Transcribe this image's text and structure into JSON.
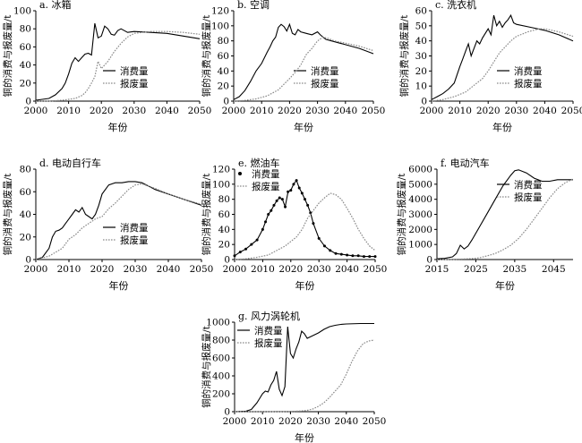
{
  "figure": {
    "ylabel_common": "铜的消费与报废量/t",
    "xlabel_common": "年份",
    "legend_consumption": "消费量",
    "legend_scrap": "报废量"
  },
  "chart_data": [
    {
      "id": "a",
      "type": "line",
      "title": "a. 冰箱",
      "xlabel": "年份",
      "ylabel": "铜的消费与报废量/t",
      "xlim": [
        2000,
        2050
      ],
      "ylim": [
        0,
        100
      ],
      "xticks": [
        2000,
        2010,
        2020,
        2030,
        2040,
        2050
      ],
      "yticks": [
        0,
        20,
        40,
        60,
        80,
        100
      ],
      "legend_position": "right",
      "series": [
        {
          "name": "消费量",
          "style": "solid",
          "x": [
            2000,
            2002,
            2004,
            2006,
            2008,
            2009,
            2010,
            2011,
            2012,
            2013,
            2014,
            2015,
            2016,
            2017,
            2018,
            2019,
            2020,
            2021,
            2022,
            2023,
            2024,
            2025,
            2026,
            2027,
            2028,
            2030,
            2035,
            2040,
            2045,
            2050
          ],
          "y": [
            1,
            2,
            3,
            7,
            14,
            20,
            30,
            42,
            48,
            44,
            48,
            52,
            53,
            51,
            86,
            70,
            72,
            83,
            80,
            74,
            73,
            78,
            80,
            78,
            76,
            77,
            76,
            75,
            72,
            69
          ]
        },
        {
          "name": "报废量",
          "style": "dotted",
          "x": [
            2000,
            2004,
            2008,
            2010,
            2012,
            2014,
            2015,
            2016,
            2017,
            2018,
            2019,
            2020,
            2022,
            2024,
            2026,
            2028,
            2030,
            2035,
            2040,
            2045,
            2050
          ],
          "y": [
            0,
            0,
            1,
            2,
            3,
            6,
            9,
            14,
            20,
            27,
            44,
            36,
            44,
            55,
            64,
            71,
            75,
            77,
            77,
            76,
            74
          ]
        }
      ]
    },
    {
      "id": "b",
      "type": "line",
      "title": "b. 空调",
      "xlabel": "年份",
      "ylabel": "铜的消费与报废量/t",
      "xlim": [
        2000,
        2050
      ],
      "ylim": [
        0,
        120
      ],
      "xticks": [
        2000,
        2010,
        2020,
        2030,
        2040,
        2050
      ],
      "yticks": [
        0,
        20,
        40,
        60,
        80,
        100,
        120
      ],
      "legend_position": "right",
      "series": [
        {
          "name": "消费量",
          "style": "solid",
          "x": [
            2000,
            2002,
            2004,
            2006,
            2008,
            2010,
            2012,
            2013,
            2014,
            2015,
            2016,
            2017,
            2018,
            2019,
            2020,
            2021,
            2022,
            2023,
            2024,
            2026,
            2028,
            2030,
            2031,
            2032,
            2033,
            2035,
            2040,
            2045,
            2050
          ],
          "y": [
            2,
            6,
            14,
            26,
            40,
            50,
            65,
            72,
            80,
            85,
            98,
            102,
            99,
            93,
            102,
            90,
            88,
            95,
            92,
            90,
            88,
            92,
            88,
            85,
            82,
            80,
            75,
            70,
            63
          ]
        },
        {
          "name": "报废量",
          "style": "dotted",
          "x": [
            2000,
            2004,
            2008,
            2012,
            2016,
            2020,
            2022,
            2024,
            2026,
            2028,
            2030,
            2032,
            2034,
            2036,
            2040,
            2045,
            2050
          ],
          "y": [
            0,
            1,
            3,
            7,
            15,
            30,
            38,
            48,
            62,
            70,
            80,
            85,
            83,
            80,
            77,
            73,
            67
          ]
        }
      ]
    },
    {
      "id": "c",
      "type": "line",
      "title": "c. 洗衣机",
      "xlabel": "年份",
      "ylabel": "铜的消费与报废量/t",
      "xlim": [
        2000,
        2050
      ],
      "ylim": [
        0,
        60
      ],
      "xticks": [
        2000,
        2010,
        2020,
        2030,
        2040,
        2050
      ],
      "yticks": [
        0,
        10,
        20,
        30,
        40,
        50,
        60
      ],
      "legend_position": "right",
      "series": [
        {
          "name": "消费量",
          "style": "solid",
          "x": [
            2000,
            2002,
            2004,
            2006,
            2008,
            2010,
            2011,
            2012,
            2013,
            2014,
            2015,
            2016,
            2017,
            2018,
            2019,
            2020,
            2021,
            2022,
            2023,
            2024,
            2025,
            2026,
            2027,
            2028,
            2029,
            2030,
            2035,
            2040,
            2045,
            2050
          ],
          "y": [
            1,
            3,
            5,
            8,
            12,
            23,
            28,
            33,
            38,
            30,
            35,
            40,
            38,
            42,
            45,
            48,
            44,
            57,
            50,
            53,
            49,
            52,
            54,
            57,
            52,
            51,
            49,
            47,
            44,
            40
          ]
        },
        {
          "name": "报废量",
          "style": "dotted",
          "x": [
            2000,
            2004,
            2008,
            2012,
            2016,
            2018,
            2020,
            2022,
            2024,
            2026,
            2028,
            2030,
            2034,
            2038,
            2040,
            2045,
            2050
          ],
          "y": [
            0,
            1,
            3,
            6,
            12,
            15,
            20,
            26,
            32,
            36,
            40,
            43,
            46,
            48,
            48,
            46,
            43
          ]
        }
      ]
    },
    {
      "id": "d",
      "type": "line",
      "title": "d. 电动自行车",
      "xlabel": "年份",
      "ylabel": "铜的消费与报废量/t",
      "xlim": [
        2000,
        2050
      ],
      "ylim": [
        0,
        80
      ],
      "xticks": [
        2000,
        2010,
        2020,
        2030,
        2040,
        2050
      ],
      "yticks": [
        0,
        20,
        40,
        60,
        80
      ],
      "legend_position": "right",
      "series": [
        {
          "name": "消费量",
          "style": "solid",
          "x": [
            2000,
            2002,
            2004,
            2005,
            2006,
            2007,
            2008,
            2009,
            2010,
            2011,
            2012,
            2013,
            2014,
            2015,
            2016,
            2017,
            2018,
            2019,
            2020,
            2022,
            2024,
            2026,
            2028,
            2030,
            2032,
            2034,
            2036,
            2040,
            2045,
            2050
          ],
          "y": [
            0,
            2,
            10,
            20,
            25,
            26,
            28,
            32,
            36,
            40,
            44,
            42,
            46,
            40,
            38,
            36,
            40,
            48,
            58,
            66,
            68,
            68,
            69,
            69,
            68,
            65,
            62,
            58,
            53,
            48
          ]
        },
        {
          "name": "报废量",
          "style": "dotted",
          "x": [
            2000,
            2004,
            2008,
            2010,
            2012,
            2014,
            2016,
            2018,
            2020,
            2022,
            2024,
            2026,
            2028,
            2030,
            2032,
            2034,
            2036,
            2040,
            2045,
            2050
          ],
          "y": [
            0,
            3,
            10,
            18,
            22,
            28,
            32,
            36,
            38,
            45,
            50,
            56,
            62,
            66,
            67,
            65,
            63,
            58,
            53,
            49
          ]
        }
      ]
    },
    {
      "id": "e",
      "type": "line",
      "title": "e. 燃油车",
      "xlabel": "年份",
      "ylabel": "铜的消费与报废量/t",
      "xlim": [
        2000,
        2050
      ],
      "ylim": [
        0,
        120
      ],
      "xticks": [
        2000,
        2010,
        2020,
        2030,
        2040,
        2050
      ],
      "yticks": [
        0,
        20,
        40,
        60,
        80,
        100,
        120
      ],
      "legend_position": "top-left",
      "series": [
        {
          "name": "消费量",
          "style": "solid-dots",
          "x": [
            2000,
            2002,
            2004,
            2006,
            2008,
            2010,
            2011,
            2012,
            2013,
            2014,
            2015,
            2016,
            2017,
            2018,
            2019,
            2020,
            2021,
            2022,
            2023,
            2024,
            2025,
            2026,
            2027,
            2028,
            2030,
            2032,
            2034,
            2036,
            2038,
            2040,
            2042,
            2044,
            2046,
            2048,
            2050
          ],
          "y": [
            5,
            10,
            14,
            20,
            26,
            40,
            50,
            60,
            65,
            72,
            78,
            82,
            80,
            70,
            90,
            92,
            100,
            105,
            95,
            88,
            80,
            72,
            62,
            48,
            28,
            18,
            12,
            8,
            7,
            6,
            5,
            5,
            4,
            4,
            4
          ]
        },
        {
          "name": "报废量",
          "style": "dotted",
          "x": [
            2000,
            2004,
            2008,
            2012,
            2016,
            2018,
            2020,
            2022,
            2024,
            2026,
            2028,
            2030,
            2032,
            2034,
            2036,
            2038,
            2040,
            2042,
            2044,
            2046,
            2048,
            2050
          ],
          "y": [
            0,
            1,
            3,
            6,
            14,
            18,
            24,
            30,
            40,
            55,
            65,
            75,
            82,
            88,
            86,
            80,
            68,
            55,
            40,
            28,
            18,
            12
          ]
        }
      ]
    },
    {
      "id": "f",
      "type": "line",
      "title": "f. 电动汽车",
      "xlabel": "年份",
      "ylabel": "铜的消费与报废量/t",
      "xlim": [
        2015,
        2050
      ],
      "ylim": [
        0,
        6000
      ],
      "xticks": [
        2015,
        2025,
        2035,
        2045
      ],
      "yticks": [
        0,
        1000,
        2000,
        3000,
        4000,
        5000,
        6000
      ],
      "legend_position": "right",
      "series": [
        {
          "name": "消费量",
          "style": "solid",
          "x": [
            2015,
            2017,
            2019,
            2020,
            2021,
            2022,
            2023,
            2024,
            2026,
            2028,
            2030,
            2032,
            2034,
            2035,
            2036,
            2038,
            2040,
            2042,
            2044,
            2046,
            2048,
            2050
          ],
          "y": [
            50,
            80,
            180,
            400,
            950,
            700,
            900,
            1300,
            2200,
            3100,
            4000,
            4900,
            5600,
            5900,
            5950,
            5750,
            5400,
            5200,
            5200,
            5300,
            5300,
            5300
          ]
        },
        {
          "name": "报废量",
          "style": "dotted",
          "x": [
            2015,
            2020,
            2024,
            2026,
            2028,
            2030,
            2032,
            2034,
            2036,
            2038,
            2040,
            2042,
            2044,
            2046,
            2048,
            2050
          ],
          "y": [
            0,
            20,
            60,
            120,
            250,
            400,
            650,
            950,
            1400,
            2000,
            2700,
            3400,
            4100,
            4700,
            5100,
            5350
          ]
        }
      ]
    },
    {
      "id": "g",
      "type": "line",
      "title": "g. 风力涡轮机",
      "xlabel": "年份",
      "ylabel": "铜的消费与报废量/t",
      "xlim": [
        2000,
        2050
      ],
      "ylim": [
        0,
        1000
      ],
      "xticks": [
        2000,
        2010,
        2020,
        2030,
        2040,
        2050
      ],
      "yticks": [
        0,
        200,
        400,
        600,
        800,
        1000
      ],
      "legend_position": "top-left",
      "series": [
        {
          "name": "消费量",
          "style": "solid",
          "x": [
            2000,
            2004,
            2006,
            2008,
            2009,
            2010,
            2011,
            2012,
            2013,
            2014,
            2015,
            2016,
            2017,
            2018,
            2019,
            2020,
            2021,
            2022,
            2023,
            2024,
            2025,
            2026,
            2028,
            2030,
            2032,
            2034,
            2036,
            2038,
            2040,
            2045,
            2050
          ],
          "y": [
            0,
            5,
            25,
            100,
            150,
            200,
            230,
            220,
            300,
            350,
            450,
            250,
            180,
            280,
            950,
            650,
            600,
            700,
            780,
            900,
            870,
            820,
            850,
            880,
            920,
            950,
            965,
            975,
            980,
            985,
            985
          ]
        },
        {
          "name": "报废量",
          "style": "dotted",
          "x": [
            2000,
            2010,
            2020,
            2024,
            2026,
            2028,
            2030,
            2032,
            2034,
            2036,
            2038,
            2040,
            2042,
            2044,
            2046,
            2048,
            2050
          ],
          "y": [
            0,
            0,
            2,
            8,
            15,
            30,
            60,
            100,
            160,
            230,
            300,
            420,
            560,
            680,
            760,
            790,
            800
          ]
        }
      ]
    }
  ]
}
